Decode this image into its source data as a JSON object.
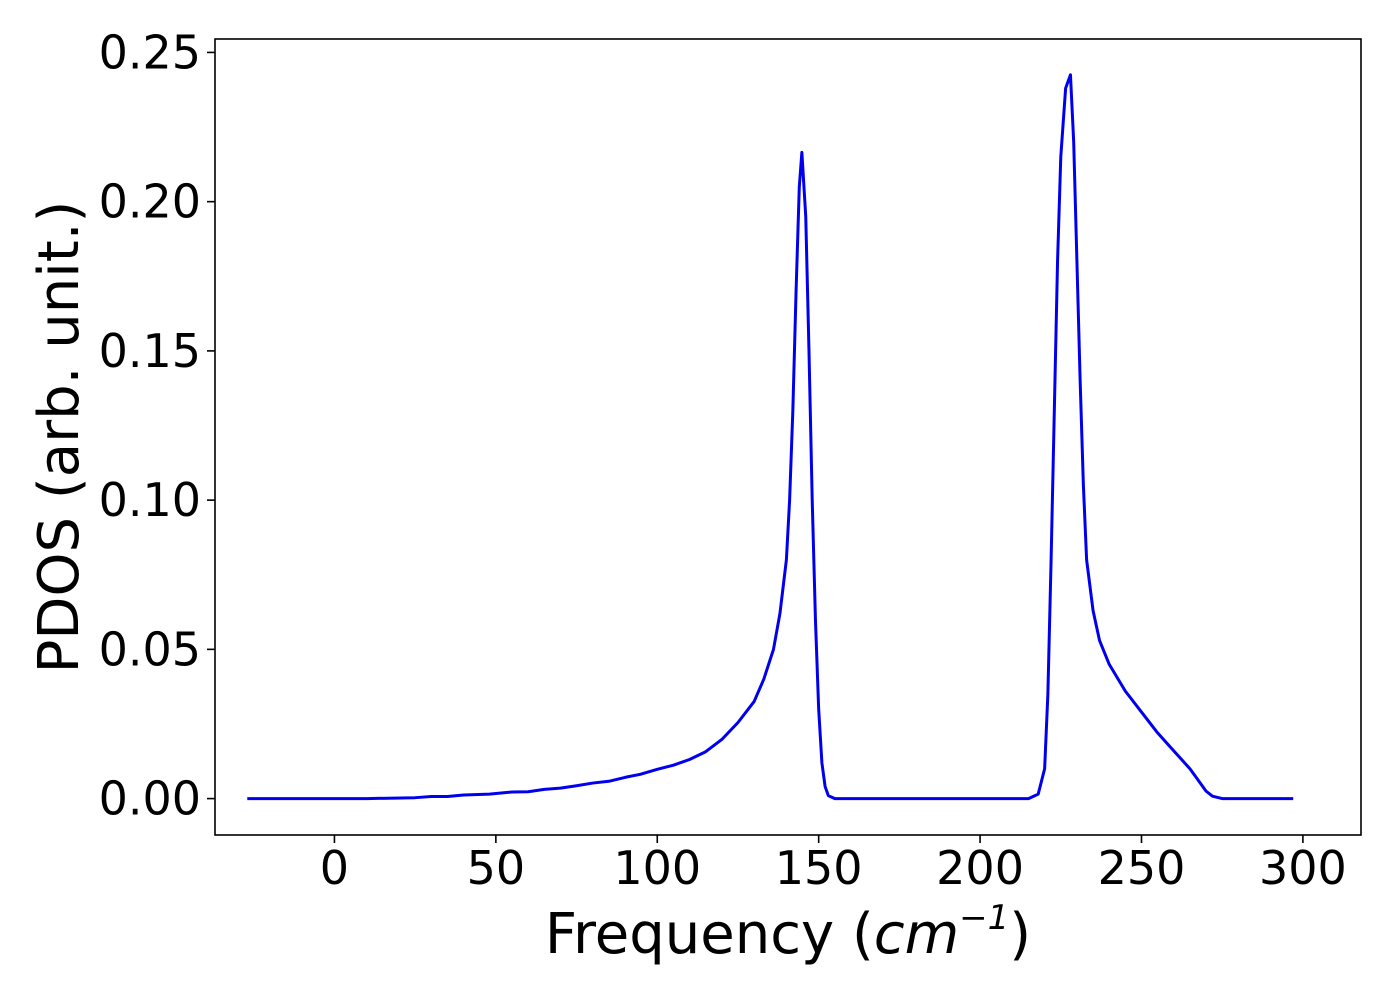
{
  "chart_data": {
    "type": "line",
    "title": "",
    "xlabel": "Frequency (",
    "xlabel_math": "cm",
    "xlabel_sup": "−1",
    "xlabel_close": ")",
    "ylabel": "PDOS (arb. unit.)",
    "xlim": [
      -37,
      318
    ],
    "ylim": [
      -0.0122,
      0.2545
    ],
    "grid": false,
    "legend": "none",
    "xticks": [
      {
        "value": 0,
        "label": "0"
      },
      {
        "value": 50,
        "label": "50"
      },
      {
        "value": 100,
        "label": "100"
      },
      {
        "value": 150,
        "label": "150"
      },
      {
        "value": 200,
        "label": "200"
      },
      {
        "value": 250,
        "label": "250"
      },
      {
        "value": 300,
        "label": "300"
      }
    ],
    "yticks": [
      {
        "value": 0.0,
        "label": "0.00"
      },
      {
        "value": 0.05,
        "label": "0.05"
      },
      {
        "value": 0.1,
        "label": "0.10"
      },
      {
        "value": 0.15,
        "label": "0.15"
      },
      {
        "value": 0.2,
        "label": "0.20"
      },
      {
        "value": 0.25,
        "label": "0.25"
      }
    ],
    "series": [
      {
        "color": "#0000ee",
        "points": [
          [
            -27,
            0.0
          ],
          [
            0,
            0.0
          ],
          [
            10,
            0.0
          ],
          [
            25,
            0.0003
          ],
          [
            30,
            0.0007
          ],
          [
            35,
            0.0007
          ],
          [
            40,
            0.0012
          ],
          [
            48,
            0.0015
          ],
          [
            55,
            0.0022
          ],
          [
            60,
            0.0023
          ],
          [
            65,
            0.0031
          ],
          [
            70,
            0.0035
          ],
          [
            75,
            0.0043
          ],
          [
            80,
            0.0052
          ],
          [
            85,
            0.0058
          ],
          [
            90,
            0.0071
          ],
          [
            95,
            0.0082
          ],
          [
            100,
            0.0098
          ],
          [
            105,
            0.0112
          ],
          [
            110,
            0.0131
          ],
          [
            115,
            0.0157
          ],
          [
            120,
            0.0198
          ],
          [
            125,
            0.0255
          ],
          [
            130,
            0.0325
          ],
          [
            133,
            0.04
          ],
          [
            136,
            0.05
          ],
          [
            138,
            0.062
          ],
          [
            140,
            0.08
          ],
          [
            141,
            0.1
          ],
          [
            142,
            0.13
          ],
          [
            143,
            0.17
          ],
          [
            144,
            0.205
          ],
          [
            144.8,
            0.2165
          ],
          [
            146,
            0.195
          ],
          [
            147,
            0.15
          ],
          [
            148,
            0.1
          ],
          [
            149,
            0.06
          ],
          [
            150,
            0.03
          ],
          [
            151,
            0.012
          ],
          [
            152,
            0.004
          ],
          [
            153,
            0.001
          ],
          [
            155,
            0.0
          ],
          [
            160,
            0.0
          ],
          [
            180,
            0.0
          ],
          [
            200,
            0.0
          ],
          [
            215,
            0.0
          ],
          [
            218,
            0.0015
          ],
          [
            220,
            0.01
          ],
          [
            221,
            0.035
          ],
          [
            222,
            0.08
          ],
          [
            223,
            0.13
          ],
          [
            224,
            0.18
          ],
          [
            225,
            0.215
          ],
          [
            226.5,
            0.238
          ],
          [
            228,
            0.2425
          ],
          [
            229,
            0.22
          ],
          [
            230,
            0.18
          ],
          [
            231,
            0.14
          ],
          [
            232,
            0.105
          ],
          [
            233,
            0.08
          ],
          [
            235,
            0.063
          ],
          [
            237,
            0.053
          ],
          [
            240,
            0.045
          ],
          [
            245,
            0.036
          ],
          [
            250,
            0.029
          ],
          [
            255,
            0.022
          ],
          [
            260,
            0.016
          ],
          [
            265,
            0.01
          ],
          [
            268,
            0.0055
          ],
          [
            270,
            0.0025
          ],
          [
            272,
            0.0008
          ],
          [
            275,
            0.0
          ],
          [
            285,
            0.0
          ],
          [
            297,
            0.0
          ]
        ]
      }
    ]
  }
}
